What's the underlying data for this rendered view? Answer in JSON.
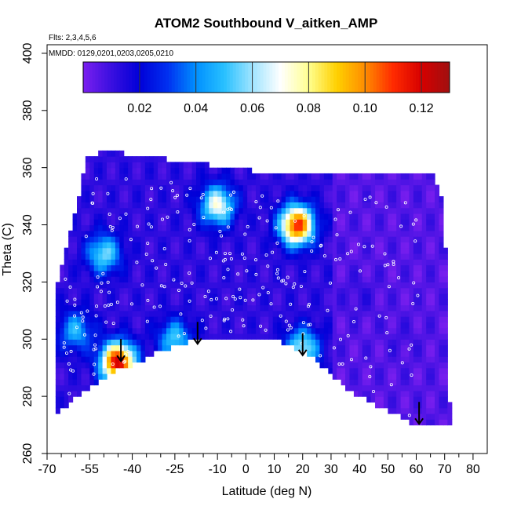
{
  "chart_data": {
    "type": "heatmap",
    "title": "ATOM2 Southbound V_aitken_AMP",
    "subtitle_flights": "Flts: 2,3,4,5,6",
    "subtitle_dates": "MMDD: 0129,0201,0203,0205,0210",
    "xlabel": "Latitude (deg N)",
    "ylabel": "Theta (C)",
    "xlim": [
      -70,
      85
    ],
    "ylim": [
      260,
      403
    ],
    "x_ticks_major": [
      -70,
      -55,
      -40,
      -25,
      -10,
      0,
      10,
      20,
      30,
      40,
      50,
      60,
      70,
      80
    ],
    "x_tick_labels": [
      "-70",
      "-55",
      "-40",
      "-25",
      "-10",
      "0",
      "10",
      "20",
      "30",
      "40",
      "50",
      "60",
      "70",
      "80"
    ],
    "x_ticks_minor": [
      -65,
      -60,
      -50,
      -45,
      -35,
      -30,
      -20,
      -15,
      -5,
      5,
      15,
      25,
      35,
      45,
      55,
      65,
      75
    ],
    "y_ticks": [
      260,
      280,
      300,
      320,
      340,
      360,
      380,
      400
    ],
    "y_tick_labels": [
      "260",
      "280",
      "300",
      "320",
      "340",
      "360",
      "380",
      "400"
    ],
    "colorbar": {
      "range": [
        0,
        0.13
      ],
      "ticks": [
        0.02,
        0.04,
        0.06,
        0.08,
        0.1,
        0.12
      ],
      "tick_labels": [
        "0.02",
        "0.04",
        "0.06",
        "0.08",
        "0.10",
        "0.12"
      ],
      "colors": [
        "#7b1fef",
        "#3a0fe0",
        "#0000d8",
        "#0030f0",
        "#0090ff",
        "#28c0ff",
        "#9fe4ff",
        "#ffffff",
        "#ffff90",
        "#ffd000",
        "#ff8c00",
        "#ff2a00",
        "#d60000",
        "#a01010"
      ]
    },
    "data_boundary": {
      "top": [
        [
          -66,
          320
        ],
        [
          -61,
          340
        ],
        [
          -56,
          363
        ],
        [
          -50,
          366
        ],
        [
          -20,
          362
        ],
        [
          10,
          358
        ],
        [
          38,
          358
        ],
        [
          66,
          358
        ],
        [
          68,
          352
        ],
        [
          70,
          345
        ],
        [
          71,
          290
        ],
        [
          72,
          273
        ]
      ],
      "bottom": [
        [
          72,
          270
        ],
        [
          60,
          270
        ],
        [
          48,
          276
        ],
        [
          35,
          283
        ],
        [
          28,
          290
        ],
        [
          20,
          296
        ],
        [
          10,
          300
        ],
        [
          0,
          300
        ],
        [
          -10,
          301
        ],
        [
          -20,
          299
        ],
        [
          -30,
          296
        ],
        [
          -40,
          291
        ],
        [
          -48,
          288
        ],
        [
          -57,
          282
        ],
        [
          -67,
          274
        ]
      ]
    },
    "features": [
      {
        "lat": -45,
        "theta": 292,
        "value": 0.11
      },
      {
        "lat": 18,
        "theta": 340,
        "value": 0.1
      },
      {
        "lat": -10,
        "theta": 347,
        "value": 0.06
      },
      {
        "lat": -50,
        "theta": 330,
        "value": 0.045
      },
      {
        "lat": 20,
        "theta": 297,
        "value": 0.05
      },
      {
        "lat": -60,
        "theta": 303,
        "value": 0.035
      },
      {
        "lat": -25,
        "theta": 300,
        "value": 0.04
      },
      {
        "lat": 40,
        "theta": 315,
        "value": 0.005
      },
      {
        "lat": 55,
        "theta": 300,
        "value": 0.003
      }
    ],
    "arrows_lat": [
      -44,
      -17,
      20,
      61
    ],
    "arrow_theta": [
      294,
      300,
      296,
      272
    ],
    "legend": "none",
    "grid": false
  }
}
